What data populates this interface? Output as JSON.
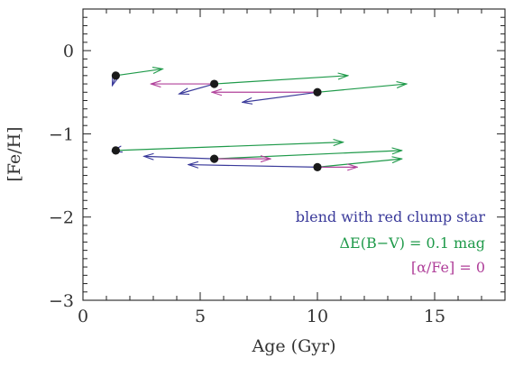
{
  "chart_data": {
    "type": "scatter",
    "xlabel": "Age (Gyr)",
    "ylabel": "[Fe/H]",
    "xlim": [
      0,
      18
    ],
    "ylim": [
      -3,
      0.5
    ],
    "x_ticks": [
      0,
      5,
      10,
      15
    ],
    "y_ticks": [
      0,
      -1,
      -2,
      -3
    ],
    "x_tick_labels": [
      "0",
      "5",
      "10",
      "15"
    ],
    "y_tick_labels": [
      "0",
      "−1",
      "−2",
      "−3"
    ],
    "grid": false,
    "points": [
      {
        "x": 1.4,
        "y": -0.3
      },
      {
        "x": 5.6,
        "y": -0.4
      },
      {
        "x": 10.0,
        "y": -0.5
      },
      {
        "x": 1.4,
        "y": -1.2
      },
      {
        "x": 5.6,
        "y": -1.3
      },
      {
        "x": 10.0,
        "y": -1.4
      }
    ],
    "series": [
      {
        "name": "blend with red clump star",
        "color": "#3a3a9a",
        "arrows": [
          {
            "from": [
              1.4,
              -0.3
            ],
            "to": [
              1.25,
              -0.42
            ]
          },
          {
            "from": [
              5.6,
              -0.4
            ],
            "to": [
              4.1,
              -0.52
            ]
          },
          {
            "from": [
              10.0,
              -0.5
            ],
            "to": [
              6.8,
              -0.62
            ]
          },
          {
            "from": [
              1.4,
              -1.2
            ],
            "to": [
              1.25,
              -1.21
            ]
          },
          {
            "from": [
              5.6,
              -1.3
            ],
            "to": [
              2.6,
              -1.27
            ]
          },
          {
            "from": [
              10.0,
              -1.4
            ],
            "to": [
              4.5,
              -1.37
            ]
          }
        ]
      },
      {
        "name": "ΔE(B−V) = 0.1 mag",
        "color": "#1f9a4a",
        "arrows": [
          {
            "from": [
              1.4,
              -0.3
            ],
            "to": [
              3.4,
              -0.22
            ]
          },
          {
            "from": [
              5.6,
              -0.4
            ],
            "to": [
              11.3,
              -0.3
            ]
          },
          {
            "from": [
              10.0,
              -0.5
            ],
            "to": [
              13.8,
              -0.4
            ]
          },
          {
            "from": [
              1.4,
              -1.2
            ],
            "to": [
              11.1,
              -1.1
            ]
          },
          {
            "from": [
              5.6,
              -1.3
            ],
            "to": [
              13.6,
              -1.2
            ]
          },
          {
            "from": [
              10.0,
              -1.4
            ],
            "to": [
              13.6,
              -1.3
            ]
          }
        ]
      },
      {
        "name": "[α/Fe] = 0",
        "color": "#b0409a",
        "arrows": [
          {
            "from": [
              1.4,
              -0.3
            ],
            "to": [
              1.4,
              -0.3
            ]
          },
          {
            "from": [
              5.6,
              -0.4
            ],
            "to": [
              2.9,
              -0.4
            ]
          },
          {
            "from": [
              10.0,
              -0.5
            ],
            "to": [
              5.5,
              -0.5
            ]
          },
          {
            "from": [
              1.4,
              -1.2
            ],
            "to": [
              1.4,
              -1.2
            ]
          },
          {
            "from": [
              5.6,
              -1.3
            ],
            "to": [
              8.0,
              -1.3
            ]
          },
          {
            "from": [
              10.0,
              -1.4
            ],
            "to": [
              11.7,
              -1.4
            ]
          }
        ]
      }
    ],
    "legend": {
      "placement": "bottom-right",
      "entries": [
        {
          "text": "blend with red clump star",
          "color": "#3a3a9a"
        },
        {
          "text": "ΔE(B−V) = 0.1 mag",
          "color": "#1f9a4a"
        },
        {
          "text": "[α/Fe] = 0",
          "color": "#b0409a"
        }
      ]
    }
  }
}
